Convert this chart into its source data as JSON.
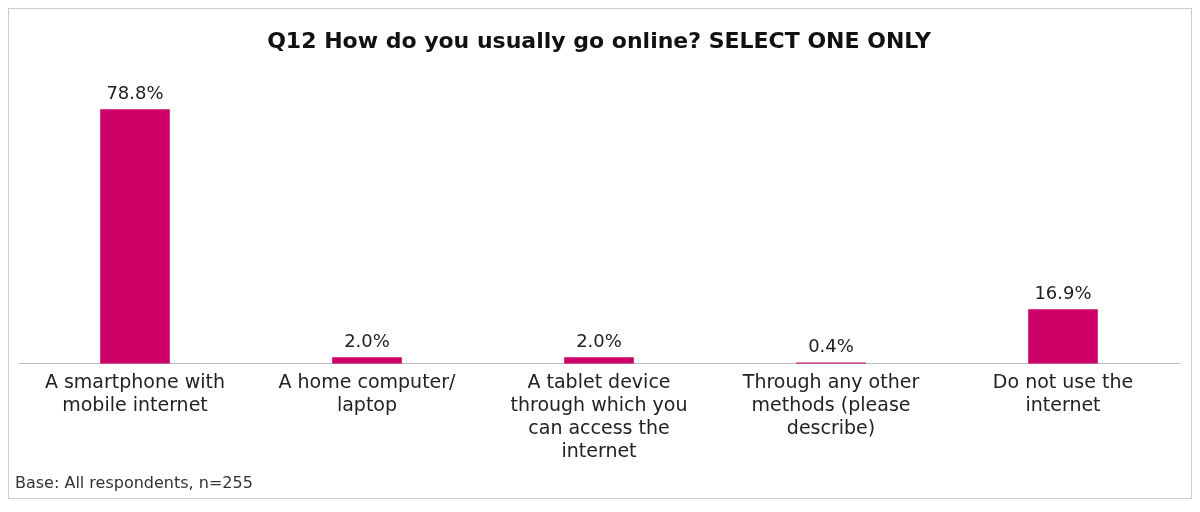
{
  "chart_data": {
    "type": "bar",
    "title": "Q12 How do you usually go online? SELECT ONE ONLY",
    "categories": [
      "A smartphone with mobile internet",
      "A home computer/ laptop",
      "A tablet device through which you can access the internet",
      "Through any other methods (please describe)",
      "Do not use the internet"
    ],
    "values": [
      78.8,
      2.0,
      2.0,
      0.4,
      16.9
    ],
    "value_labels": [
      "78.8%",
      "2.0%",
      "2.0%",
      "0.4%",
      "16.9%"
    ],
    "color": "#cc0066",
    "grid": false,
    "legend": false,
    "annotations": [
      "Base: All respondents, n=255"
    ]
  }
}
